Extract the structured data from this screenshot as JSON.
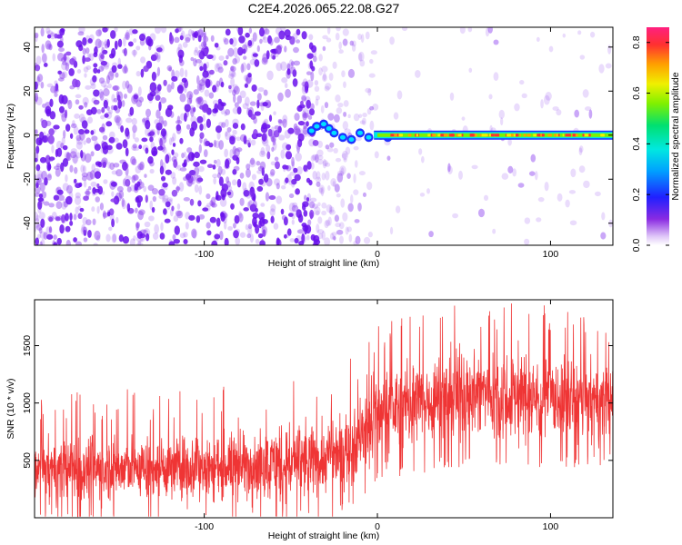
{
  "title": "C2E4.2026.065.22.08.G27",
  "chart_data": [
    {
      "type": "heatmap",
      "title": "C2E4.2026.065.22.08.G27",
      "xlabel": "Height of straight line (km)",
      "ylabel": "Frequency (Hz)",
      "xlim": [
        -198,
        136
      ],
      "ylim": [
        -50,
        49
      ],
      "xticks": [
        -100,
        0,
        100
      ],
      "yticks": [
        -40,
        -20,
        0,
        20,
        40
      ],
      "colorbar": {
        "label": "Normalized spectral amplitude",
        "range": [
          0.0,
          0.86
        ],
        "ticks": [
          0.0,
          0.2,
          0.4,
          0.6,
          0.8
        ],
        "colormap": "rainbow (magenta-blue-cyan-green-yellow-red)"
      },
      "description_values": {
        "noise_region_x": [
          -198,
          -35
        ],
        "signal_line_frequency_hz": 0,
        "signal_start_x": -40,
        "signal_amplitude_peak": 0.8
      }
    },
    {
      "type": "line",
      "xlabel": "Height of straight line (km)",
      "ylabel": "SNR (10 * v/v)",
      "xlim": [
        -198,
        136
      ],
      "ylim": [
        0,
        1900
      ],
      "xticks": [
        -100,
        0,
        100
      ],
      "yticks": [
        500,
        1000,
        1500
      ],
      "color": "#ef3535",
      "envelope": {
        "x": [
          -198,
          -150,
          -100,
          -50,
          -30,
          -15,
          -5,
          0,
          10,
          20,
          40,
          60,
          80,
          100,
          120,
          136
        ],
        "lower": [
          30,
          40,
          50,
          60,
          80,
          150,
          300,
          420,
          450,
          470,
          520,
          560,
          520,
          540,
          520,
          560
        ],
        "upper": [
          780,
          820,
          850,
          900,
          950,
          1100,
          1300,
          1400,
          1450,
          1500,
          1600,
          1650,
          1600,
          1550,
          1500,
          1450
        ]
      }
    }
  ],
  "colors": {
    "line": "#ef3535",
    "noise_dot": "#7a1ff0",
    "axis": "#000000"
  }
}
